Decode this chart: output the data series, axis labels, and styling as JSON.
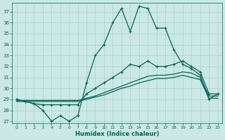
{
  "xlabel": "Humidex (Indice chaleur)",
  "ylabel": "",
  "xlim": [
    -0.5,
    23.5
  ],
  "ylim": [
    26.8,
    37.8
  ],
  "yticks": [
    27,
    28,
    29,
    30,
    31,
    32,
    33,
    34,
    35,
    36,
    37
  ],
  "xticks": [
    0,
    1,
    2,
    3,
    4,
    5,
    6,
    7,
    8,
    9,
    10,
    11,
    12,
    13,
    14,
    15,
    16,
    17,
    18,
    19,
    20,
    21,
    22,
    23
  ],
  "bg_color": "#cce8e4",
  "grid_color": "#99cccc",
  "line_color": "#006655",
  "lines": [
    {
      "x": [
        0,
        1,
        2,
        3,
        4,
        5,
        6,
        7,
        8,
        9,
        10,
        11,
        12,
        13,
        14,
        15,
        16,
        17,
        18,
        19,
        20,
        21,
        22,
        23
      ],
      "y": [
        29.0,
        28.8,
        28.6,
        28.0,
        27.0,
        27.5,
        27.0,
        27.5,
        30.5,
        33.0,
        34.0,
        36.0,
        37.3,
        35.2,
        37.5,
        37.3,
        35.5,
        35.5,
        33.5,
        32.2,
        31.8,
        31.2,
        29.0,
        29.5
      ],
      "marker": true,
      "lw": 0.9
    },
    {
      "x": [
        0,
        1,
        2,
        3,
        4,
        5,
        6,
        7,
        8,
        9,
        10,
        11,
        12,
        13,
        14,
        15,
        16,
        17,
        18,
        19,
        20,
        21,
        22,
        23
      ],
      "y": [
        29.0,
        28.8,
        28.6,
        28.5,
        28.5,
        28.5,
        28.5,
        28.5,
        29.5,
        30.0,
        30.5,
        31.0,
        31.5,
        32.2,
        32.0,
        32.5,
        32.0,
        32.0,
        32.2,
        32.5,
        32.0,
        31.5,
        29.5,
        29.5
      ],
      "marker": true,
      "lw": 0.9
    },
    {
      "x": [
        0,
        1,
        2,
        3,
        4,
        5,
        6,
        7,
        8,
        9,
        10,
        11,
        12,
        13,
        14,
        15,
        16,
        17,
        18,
        19,
        20,
        21,
        22,
        23
      ],
      "y": [
        28.9,
        28.9,
        28.9,
        28.9,
        28.9,
        28.9,
        28.9,
        28.9,
        29.1,
        29.3,
        29.6,
        29.9,
        30.2,
        30.5,
        30.8,
        31.1,
        31.2,
        31.2,
        31.3,
        31.5,
        31.4,
        31.0,
        29.3,
        29.3
      ],
      "marker": false,
      "lw": 0.9
    },
    {
      "x": [
        0,
        1,
        2,
        3,
        4,
        5,
        6,
        7,
        8,
        9,
        10,
        11,
        12,
        13,
        14,
        15,
        16,
        17,
        18,
        19,
        20,
        21,
        22,
        23
      ],
      "y": [
        28.8,
        28.8,
        28.8,
        28.8,
        28.8,
        28.8,
        28.8,
        28.8,
        29.0,
        29.2,
        29.4,
        29.7,
        30.0,
        30.2,
        30.5,
        30.7,
        30.9,
        30.9,
        31.0,
        31.2,
        31.0,
        30.8,
        29.1,
        29.1
      ],
      "marker": false,
      "lw": 0.9
    }
  ]
}
